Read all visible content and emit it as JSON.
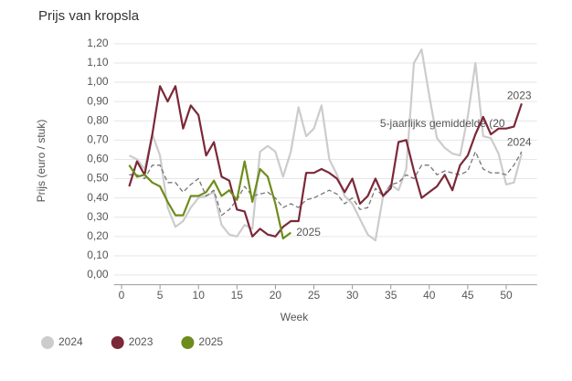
{
  "chart_data": {
    "type": "line",
    "title": "Prijs van kropsla",
    "y_label": "Prijs (euro / stuk)",
    "x_label": "Week",
    "x": [
      1,
      2,
      3,
      4,
      5,
      6,
      7,
      8,
      9,
      10,
      11,
      12,
      13,
      14,
      15,
      16,
      17,
      18,
      19,
      20,
      21,
      22,
      23,
      24,
      25,
      26,
      27,
      28,
      29,
      30,
      31,
      32,
      33,
      34,
      35,
      36,
      37,
      38,
      39,
      40,
      41,
      42,
      43,
      44,
      45,
      46,
      47,
      48,
      49,
      50,
      51,
      52
    ],
    "xlim": [
      -1,
      54
    ],
    "xticks": [
      0,
      5,
      10,
      15,
      20,
      25,
      30,
      35,
      40,
      45,
      50
    ],
    "ylim": [
      -0.05,
      1.24
    ],
    "yticks": [
      {
        "value": 0,
        "label": "0,00"
      },
      {
        "value": 0.1,
        "label": "0,10"
      },
      {
        "value": 0.2,
        "label": "0,20"
      },
      {
        "value": 0.3,
        "label": "0,30"
      },
      {
        "value": 0.4,
        "label": "0,40"
      },
      {
        "value": 0.5,
        "label": "0,50"
      },
      {
        "value": 0.6,
        "label": "0,60"
      },
      {
        "value": 0.7,
        "label": "0,70"
      },
      {
        "value": 0.8,
        "label": "0,80"
      },
      {
        "value": 0.9,
        "label": "0,90"
      },
      {
        "value": 1.0,
        "label": "1,00"
      },
      {
        "value": 1.1,
        "label": "1,10"
      },
      {
        "value": 1.2,
        "label": "1,20"
      }
    ],
    "grid": true,
    "series": [
      {
        "name": "2024",
        "color": "#cccccc",
        "dashed": false,
        "in_legend": true,
        "values": [
          0.62,
          0.6,
          0.55,
          0.73,
          0.62,
          0.35,
          0.25,
          0.28,
          0.35,
          0.4,
          0.41,
          0.43,
          0.26,
          0.21,
          0.2,
          0.26,
          0.24,
          0.64,
          0.67,
          0.64,
          0.51,
          0.64,
          0.87,
          0.72,
          0.76,
          0.88,
          0.6,
          0.52,
          0.41,
          0.37,
          0.29,
          0.21,
          0.18,
          0.41,
          0.47,
          0.44,
          0.55,
          1.1,
          1.17,
          0.93,
          0.71,
          0.66,
          0.63,
          0.62,
          0.82,
          1.1,
          0.72,
          0.71,
          0.63,
          0.47,
          0.48,
          0.63
        ]
      },
      {
        "name": "5-jaarlijks gemiddelde (20",
        "color": "#777777",
        "dashed": true,
        "in_legend": false,
        "values": [
          0.52,
          0.52,
          0.5,
          0.57,
          0.57,
          0.48,
          0.48,
          0.43,
          0.47,
          0.5,
          0.41,
          0.44,
          0.31,
          0.34,
          0.39,
          0.46,
          0.41,
          0.42,
          0.43,
          0.4,
          0.35,
          0.37,
          0.35,
          0.39,
          0.4,
          0.42,
          0.44,
          0.42,
          0.37,
          0.4,
          0.34,
          0.35,
          0.45,
          0.41,
          0.47,
          0.48,
          0.52,
          0.5,
          0.57,
          0.57,
          0.52,
          0.54,
          0.53,
          0.52,
          0.54,
          0.64,
          0.55,
          0.53,
          0.53,
          0.52,
          0.57,
          0.64
        ]
      },
      {
        "name": "2023",
        "color": "#7b2838",
        "dashed": false,
        "in_legend": true,
        "values": [
          0.46,
          0.59,
          0.52,
          0.73,
          0.98,
          0.9,
          0.98,
          0.76,
          0.88,
          0.83,
          0.62,
          0.69,
          0.51,
          0.49,
          0.34,
          0.33,
          0.2,
          0.24,
          0.21,
          0.2,
          0.25,
          0.28,
          0.28,
          0.53,
          0.53,
          0.55,
          0.53,
          0.5,
          0.43,
          0.5,
          0.37,
          0.41,
          0.5,
          0.41,
          0.45,
          0.69,
          0.7,
          0.54,
          0.4,
          0.43,
          0.46,
          0.52,
          0.44,
          0.57,
          0.62,
          0.73,
          0.82,
          0.73,
          0.76,
          0.76,
          0.77,
          0.89
        ]
      },
      {
        "name": "2025",
        "color": "#6e8c1c",
        "dashed": false,
        "in_legend": true,
        "values": [
          0.57,
          0.51,
          0.52,
          0.48,
          0.46,
          0.38,
          0.31,
          0.31,
          0.41,
          0.41,
          0.43,
          0.49,
          0.41,
          0.44,
          0.39,
          0.59,
          0.38,
          0.55,
          0.51,
          0.37,
          0.19,
          0.22,
          null,
          null,
          null,
          null,
          null,
          null,
          null,
          null,
          null,
          null,
          null,
          null,
          null,
          null,
          null,
          null,
          null,
          null,
          null,
          null,
          null,
          null,
          null,
          null,
          null,
          null,
          null,
          null,
          null,
          null
        ]
      }
    ]
  }
}
